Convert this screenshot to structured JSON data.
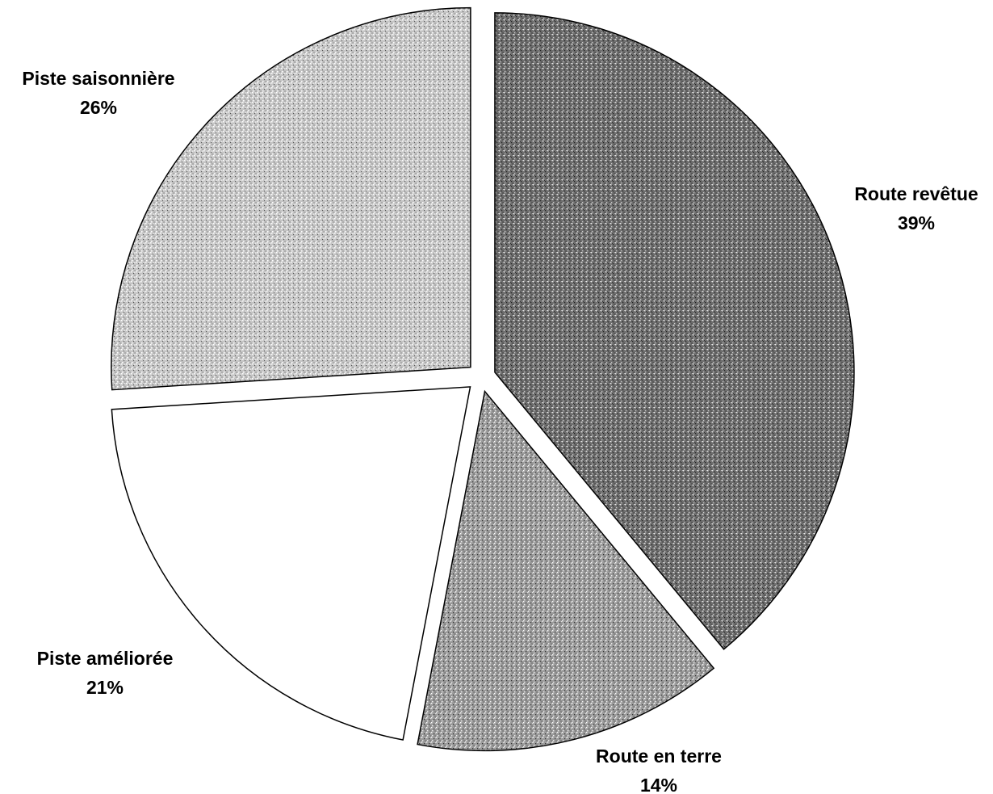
{
  "chart_data": {
    "type": "pie",
    "slices": [
      {
        "label": "Route revêtue",
        "value": 39,
        "value_label": "39%",
        "fill": "dark-stipple"
      },
      {
        "label": "Route en terre",
        "value": 14,
        "value_label": "14%",
        "fill": "medium-stipple"
      },
      {
        "label": "Piste améliorée",
        "value": 21,
        "value_label": "21%",
        "fill": "white"
      },
      {
        "label": "Piste saisonnière",
        "value": 26,
        "value_label": "26%",
        "fill": "light-stipple"
      }
    ],
    "start": "12 o'clock",
    "direction": "clockwise",
    "exploded": true,
    "legend": "none"
  }
}
